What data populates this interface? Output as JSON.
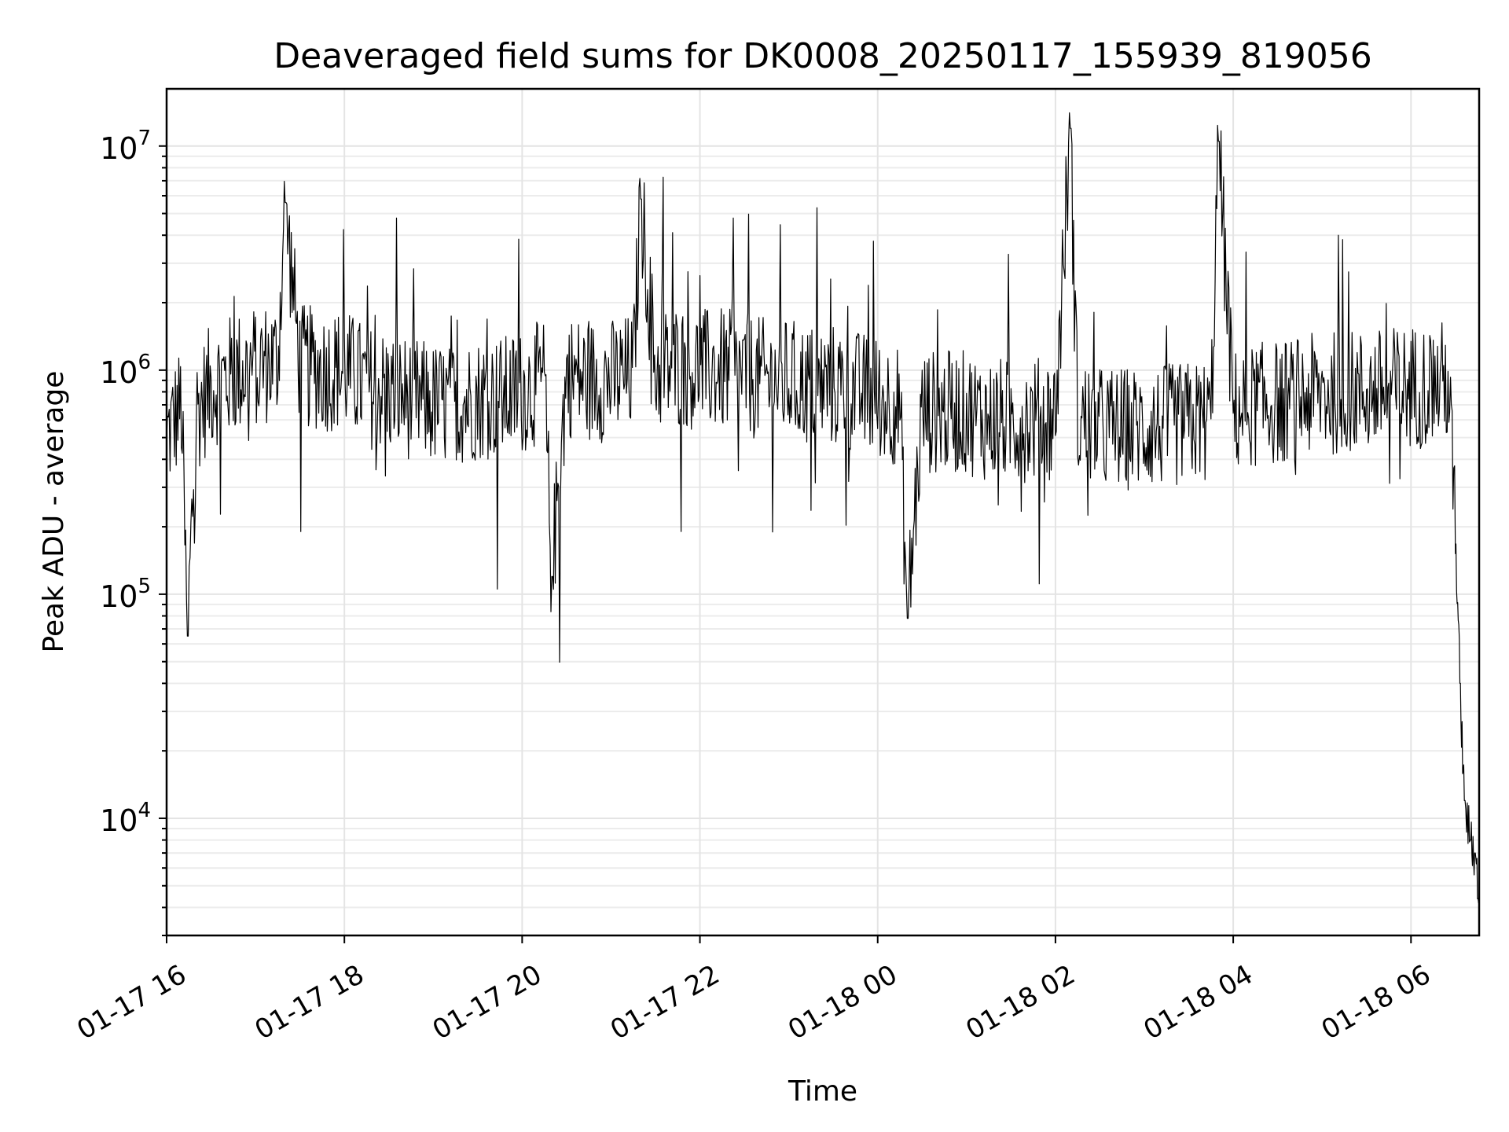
{
  "chart_data": {
    "type": "line",
    "title": "Deaveraged field sums for DK0008_20250117_155939_819056",
    "xlabel": "Time",
    "ylabel": "Peak ADU - average",
    "yscale": "log",
    "grid": true,
    "colors": {
      "series": "#000000",
      "grid": "#e4e4e4",
      "frame": "#000000"
    },
    "xlim": [
      "2025-01-17 16:00",
      "2025-01-18 06:46"
    ],
    "ylim": [
      3000,
      18000000
    ],
    "x_tick_labels": [
      "01-17 16",
      "01-17 18",
      "01-17 20",
      "01-17 22",
      "01-18 00",
      "01-18 02",
      "01-18 04",
      "01-18 06"
    ],
    "x_ticks": [
      "2025-01-17 16:00",
      "2025-01-17 18:00",
      "2025-01-17 20:00",
      "2025-01-17 22:00",
      "2025-01-18 00:00",
      "2025-01-18 02:00",
      "2025-01-18 04:00",
      "2025-01-18 06:00"
    ],
    "y_ticks": [
      {
        "value": 10000,
        "base": "10",
        "exp": "4"
      },
      {
        "value": 100000,
        "base": "10",
        "exp": "5"
      },
      {
        "value": 1000000,
        "base": "10",
        "exp": "6"
      },
      {
        "value": 10000000,
        "base": "10",
        "exp": "7"
      }
    ],
    "series": [
      {
        "x": [
          "2025-01-17 16:00",
          "2025-01-17 16:10",
          "2025-01-17 16:14",
          "2025-01-17 16:20",
          "2025-01-17 16:30",
          "2025-01-17 16:45",
          "2025-01-17 17:00",
          "2025-01-17 17:15",
          "2025-01-17 17:20",
          "2025-01-17 17:30",
          "2025-01-17 17:45",
          "2025-01-17 18:00",
          "2025-01-17 18:15",
          "2025-01-17 18:30",
          "2025-01-17 18:45",
          "2025-01-17 19:00",
          "2025-01-17 19:15",
          "2025-01-17 19:30",
          "2025-01-17 19:45",
          "2025-01-17 20:00",
          "2025-01-17 20:15",
          "2025-01-17 20:20",
          "2025-01-17 20:30",
          "2025-01-17 20:45",
          "2025-01-17 21:00",
          "2025-01-17 21:15",
          "2025-01-17 21:20",
          "2025-01-17 21:30",
          "2025-01-17 21:45",
          "2025-01-17 22:00",
          "2025-01-17 22:15",
          "2025-01-17 22:30",
          "2025-01-17 22:45",
          "2025-01-17 23:00",
          "2025-01-17 23:15",
          "2025-01-17 23:30",
          "2025-01-17 23:45",
          "2025-01-18 00:00",
          "2025-01-18 00:15",
          "2025-01-18 00:20",
          "2025-01-18 00:30",
          "2025-01-18 00:45",
          "2025-01-18 01:00",
          "2025-01-18 01:15",
          "2025-01-18 01:30",
          "2025-01-18 01:45",
          "2025-01-18 02:00",
          "2025-01-18 02:10",
          "2025-01-18 02:15",
          "2025-01-18 02:30",
          "2025-01-18 02:45",
          "2025-01-18 03:00",
          "2025-01-18 03:15",
          "2025-01-18 03:30",
          "2025-01-18 03:45",
          "2025-01-18 03:50",
          "2025-01-18 04:00",
          "2025-01-18 04:15",
          "2025-01-18 04:30",
          "2025-01-18 04:45",
          "2025-01-18 05:00",
          "2025-01-18 05:15",
          "2025-01-18 05:30",
          "2025-01-18 05:45",
          "2025-01-18 06:00",
          "2025-01-18 06:15",
          "2025-01-18 06:25",
          "2025-01-18 06:30",
          "2025-01-18 06:33",
          "2025-01-18 06:36",
          "2025-01-18 06:40",
          "2025-01-18 06:43",
          "2025-01-18 06:46"
        ],
        "y": [
          500000,
          700000,
          65000,
          650000,
          850000,
          950000,
          1050000,
          1100000,
          5600000,
          1050000,
          1000000,
          1000000,
          850000,
          800000,
          750000,
          700000,
          700000,
          750000,
          750000,
          800000,
          900000,
          120000,
          950000,
          900000,
          900000,
          950000,
          5800000,
          1000000,
          1050000,
          1000000,
          1000000,
          950000,
          900000,
          900000,
          850000,
          850000,
          800000,
          750000,
          700000,
          78000,
          650000,
          650000,
          650000,
          600000,
          600000,
          600000,
          620000,
          12000000,
          600000,
          550000,
          550000,
          550000,
          560000,
          580000,
          600000,
          10500000,
          650000,
          700000,
          720000,
          750000,
          780000,
          800000,
          800000,
          820000,
          850000,
          850000,
          900000,
          200000,
          40000,
          12000,
          8000,
          7000,
          4500
        ]
      }
    ]
  }
}
